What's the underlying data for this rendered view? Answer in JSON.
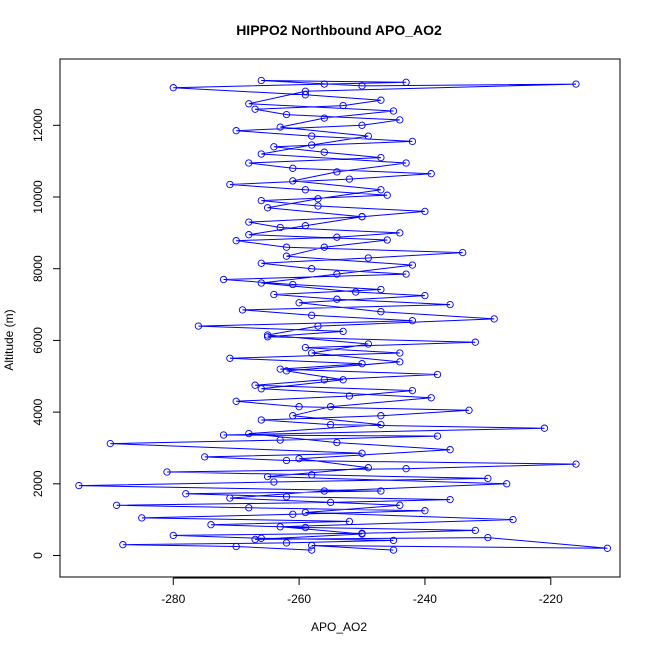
{
  "chart_data": {
    "type": "scatter",
    "title": "HIPPO2 Northbound APO_AO2",
    "xlabel": "APO_AO2",
    "ylabel": "Altitude (m)",
    "xlim": [
      -298,
      -209
    ],
    "ylim": [
      -600,
      13850
    ],
    "x_ticks": [
      -280,
      -260,
      -240,
      -220
    ],
    "x_tick_labels": [
      "-280",
      "-260",
      "-240",
      "-220"
    ],
    "y_ticks": [
      0,
      2000,
      4000,
      6000,
      8000,
      10000,
      12000
    ],
    "y_tick_labels": [
      "0",
      "2000",
      "4000",
      "6000",
      "8000",
      "10000",
      "12000"
    ],
    "grid": false,
    "legend": "none",
    "marker": "open-circle",
    "connect_points": true,
    "color": "#0000ff",
    "series": [
      {
        "points": [
          [
            -258,
            150
          ],
          [
            -270,
            250
          ],
          [
            -288,
            300
          ],
          [
            -262,
            350
          ],
          [
            -245,
            420
          ],
          [
            -266,
            480
          ],
          [
            -280,
            560
          ],
          [
            -250,
            620
          ],
          [
            -232,
            700
          ],
          [
            -259,
            780
          ],
          [
            -274,
            860
          ],
          [
            -252,
            950
          ],
          [
            -285,
            1050
          ],
          [
            -261,
            1150
          ],
          [
            -240,
            1250
          ],
          [
            -268,
            1330
          ],
          [
            -289,
            1400
          ],
          [
            -255,
            1480
          ],
          [
            -236,
            1560
          ],
          [
            -262,
            1640
          ],
          [
            -278,
            1720
          ],
          [
            -247,
            1800
          ],
          [
            -295,
            1950
          ],
          [
            -264,
            2050
          ],
          [
            -230,
            2150
          ],
          [
            -258,
            2250
          ],
          [
            -281,
            2330
          ],
          [
            -243,
            2420
          ],
          [
            -216,
            2550
          ],
          [
            -262,
            2650
          ],
          [
            -275,
            2750
          ],
          [
            -250,
            2850
          ],
          [
            -290,
            3120
          ],
          [
            -263,
            3220
          ],
          [
            -238,
            3330
          ],
          [
            -272,
            3360
          ],
          [
            -221,
            3550
          ],
          [
            -255,
            3650
          ],
          [
            -266,
            3780
          ],
          [
            -247,
            3900
          ],
          [
            -233,
            4050
          ],
          [
            -260,
            4150
          ],
          [
            -270,
            4300
          ],
          [
            -252,
            4450
          ],
          [
            -242,
            4600
          ],
          [
            -267,
            4750
          ],
          [
            -256,
            4900
          ],
          [
            -238,
            5050
          ],
          [
            -263,
            5200
          ],
          [
            -250,
            5350
          ],
          [
            -271,
            5500
          ],
          [
            -244,
            5650
          ],
          [
            -259,
            5800
          ],
          [
            -232,
            5950
          ],
          [
            -265,
            6100
          ],
          [
            -253,
            6250
          ],
          [
            -276,
            6400
          ],
          [
            -242,
            6550
          ],
          [
            -258,
            6700
          ],
          [
            -269,
            6850
          ],
          [
            -236,
            7000
          ],
          [
            -254,
            7150
          ],
          [
            -264,
            7280
          ],
          [
            -247,
            7420
          ],
          [
            -261,
            7560
          ],
          [
            -272,
            7700
          ],
          [
            -243,
            7850
          ],
          [
            -258,
            8000
          ],
          [
            -266,
            8150
          ],
          [
            -249,
            8300
          ],
          [
            -234,
            8450
          ],
          [
            -262,
            8600
          ],
          [
            -270,
            8780
          ],
          [
            -254,
            8880
          ],
          [
            -244,
            9000
          ],
          [
            -263,
            9150
          ],
          [
            -268,
            9300
          ],
          [
            -250,
            9450
          ],
          [
            -240,
            9600
          ],
          [
            -257,
            9750
          ],
          [
            -266,
            9900
          ],
          [
            -246,
            10050
          ],
          [
            -259,
            10200
          ],
          [
            -271,
            10350
          ],
          [
            -252,
            10500
          ],
          [
            -239,
            10650
          ],
          [
            -261,
            10800
          ],
          [
            -268,
            10950
          ],
          [
            -247,
            11100
          ],
          [
            -256,
            11250
          ],
          [
            -264,
            11400
          ],
          [
            -242,
            11550
          ],
          [
            -258,
            11700
          ],
          [
            -270,
            11850
          ],
          [
            -250,
            12000
          ],
          [
            -244,
            12150
          ],
          [
            -262,
            12300
          ],
          [
            -267,
            12450
          ],
          [
            -253,
            12550
          ],
          [
            -247,
            12700
          ],
          [
            -259,
            12850
          ],
          [
            -280,
            13050
          ],
          [
            -256,
            13150
          ],
          [
            -243,
            13200
          ],
          [
            -266,
            13250
          ],
          [
            -250,
            13100
          ],
          [
            -216,
            13150
          ],
          [
            -259,
            12950
          ],
          [
            -268,
            12600
          ],
          [
            -245,
            12400
          ],
          [
            -256,
            12200
          ],
          [
            -263,
            11950
          ],
          [
            -249,
            11700
          ],
          [
            -258,
            11450
          ],
          [
            -266,
            11200
          ],
          [
            -243,
            10950
          ],
          [
            -254,
            10700
          ],
          [
            -261,
            10450
          ],
          [
            -247,
            10200
          ],
          [
            -257,
            9950
          ],
          [
            -265,
            9700
          ],
          [
            -250,
            9450
          ],
          [
            -259,
            9200
          ],
          [
            -268,
            8950
          ],
          [
            -246,
            8800
          ],
          [
            -256,
            8600
          ],
          [
            -262,
            8350
          ],
          [
            -242,
            8100
          ],
          [
            -254,
            7850
          ],
          [
            -266,
            7600
          ],
          [
            -251,
            7350
          ],
          [
            -240,
            7250
          ],
          [
            -260,
            7050
          ],
          [
            -247,
            6800
          ],
          [
            -229,
            6600
          ],
          [
            -257,
            6400
          ],
          [
            -265,
            6150
          ],
          [
            -249,
            5900
          ],
          [
            -258,
            5650
          ],
          [
            -244,
            5400
          ],
          [
            -262,
            5150
          ],
          [
            -253,
            4900
          ],
          [
            -266,
            4650
          ],
          [
            -239,
            4400
          ],
          [
            -255,
            4150
          ],
          [
            -261,
            3900
          ],
          [
            -247,
            3650
          ],
          [
            -268,
            3400
          ],
          [
            -254,
            3150
          ],
          [
            -236,
            2950
          ],
          [
            -260,
            2700
          ],
          [
            -249,
            2450
          ],
          [
            -265,
            2200
          ],
          [
            -227,
            2000
          ],
          [
            -256,
            1800
          ],
          [
            -271,
            1600
          ],
          [
            -244,
            1400
          ],
          [
            -259,
            1200
          ],
          [
            -226,
            1000
          ],
          [
            -263,
            800
          ],
          [
            -250,
            600
          ],
          [
            -267,
            450
          ],
          [
            -230,
            500
          ],
          [
            -211,
            200
          ],
          [
            -258,
            280
          ],
          [
            -245,
            150
          ]
        ]
      }
    ]
  }
}
